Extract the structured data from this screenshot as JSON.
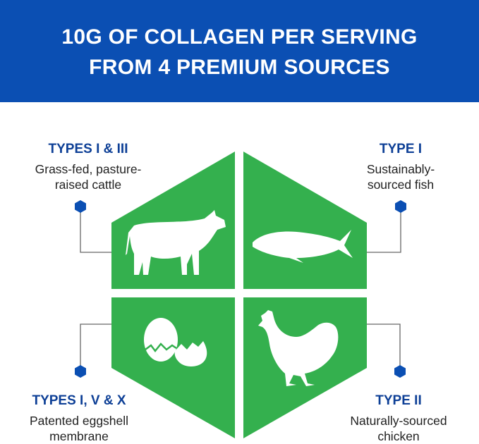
{
  "header": {
    "line1": "10G OF COLLAGEN PER SERVING",
    "line2": "FROM 4 PREMIUM SOURCES"
  },
  "colors": {
    "header_blue": "#0b4fb3",
    "green": "#34b04e",
    "title_blue": "#0d3f96",
    "node_blue": "#0b4fb3"
  },
  "sources": [
    {
      "title": "TYPES I & III",
      "line1": "Grass-fed, pasture-",
      "line2": "raised cattle",
      "icon": "cow-icon"
    },
    {
      "title": "TYPE I",
      "line1": "Sustainably-",
      "line2": "sourced fish",
      "icon": "fish-icon"
    },
    {
      "title": "TYPES I, V & X",
      "line1": "Patented eggshell",
      "line2": "membrane",
      "icon": "egg-icon"
    },
    {
      "title": "TYPE II",
      "line1": "Naturally-sourced",
      "line2": "chicken",
      "icon": "chicken-icon"
    }
  ]
}
